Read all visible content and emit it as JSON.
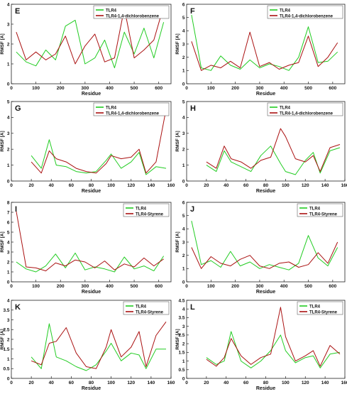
{
  "figure_title": "",
  "legend_colors": {
    "TLR4": "#22cc22",
    "complex": "#aa1111"
  },
  "chart_data": [
    {
      "panel": "E",
      "type": "line",
      "title": "",
      "xlabel": "Residue",
      "ylabel": "RMSF [A]",
      "xlim": [
        0,
        650
      ],
      "ylim": [
        0,
        4
      ],
      "xticks": [
        0,
        100,
        200,
        300,
        400,
        500,
        600
      ],
      "yticks": [
        0,
        1,
        2,
        3,
        4
      ],
      "legend": [
        "TLR4",
        "TLR4-1,4-dichlorobenzene"
      ],
      "legend_position": "top-right",
      "series": [
        {
          "name": "TLR4",
          "x": [
            20,
            60,
            100,
            140,
            180,
            220,
            260,
            300,
            340,
            380,
            420,
            460,
            500,
            540,
            580,
            620
          ],
          "values": [
            1.6,
            1.1,
            0.9,
            1.7,
            1.2,
            2.9,
            3.2,
            1.0,
            1.3,
            2.2,
            0.8,
            2.6,
            1.5,
            2.8,
            1.3,
            3.1
          ]
        },
        {
          "name": "TLR4-1,4-dichlorobenzene",
          "x": [
            20,
            60,
            100,
            140,
            180,
            220,
            260,
            300,
            340,
            380,
            420,
            460,
            500,
            540,
            580,
            620
          ],
          "values": [
            2.6,
            1.2,
            1.6,
            1.2,
            1.5,
            2.4,
            1.0,
            1.9,
            2.5,
            1.1,
            1.3,
            3.8,
            1.3,
            1.7,
            2.2,
            3.9
          ]
        }
      ]
    },
    {
      "panel": "F",
      "type": "line",
      "title": "",
      "xlabel": "Residue",
      "ylabel": "RMSF [A]",
      "xlim": [
        0,
        650
      ],
      "ylim": [
        0,
        6
      ],
      "xticks": [
        0,
        100,
        200,
        300,
        400,
        500,
        600
      ],
      "yticks": [
        0,
        1,
        2,
        3,
        4,
        5,
        6
      ],
      "legend": [
        "TLR4",
        "TLR4-1,4-dichlorobenzene"
      ],
      "legend_position": "top-right",
      "series": [
        {
          "name": "TLR4",
          "x": [
            20,
            60,
            100,
            140,
            180,
            220,
            260,
            300,
            340,
            380,
            420,
            460,
            500,
            540,
            580,
            620
          ],
          "values": [
            5.2,
            1.2,
            1.0,
            2.1,
            1.4,
            1.1,
            1.8,
            1.2,
            1.5,
            1.3,
            1.0,
            2.0,
            4.3,
            1.6,
            1.7,
            2.4
          ]
        },
        {
          "name": "TLR4-1,4-dichlorobenzene",
          "x": [
            20,
            60,
            100,
            140,
            180,
            220,
            260,
            300,
            340,
            380,
            420,
            460,
            500,
            540,
            580,
            620
          ],
          "values": [
            3.2,
            1.0,
            1.4,
            1.2,
            1.7,
            1.2,
            3.9,
            1.3,
            1.6,
            1.1,
            1.4,
            1.6,
            3.6,
            1.3,
            2.0,
            3.1
          ]
        }
      ]
    },
    {
      "panel": "G",
      "type": "line",
      "title": "",
      "xlabel": "Residue",
      "ylabel": "RMSF [A]",
      "xlim": [
        0,
        160
      ],
      "ylim": [
        0,
        5
      ],
      "xticks": [
        0,
        20,
        40,
        60,
        80,
        100,
        120,
        140,
        160
      ],
      "yticks": [
        0,
        1,
        2,
        3,
        4,
        5
      ],
      "legend": [
        "TLR4",
        "TLR4-1,4-dichlorobenzene"
      ],
      "legend_position": "top-right",
      "series": [
        {
          "name": "TLR4",
          "x": [
            20,
            30,
            38,
            45,
            55,
            65,
            75,
            85,
            95,
            100,
            110,
            120,
            128,
            135,
            145,
            155
          ],
          "values": [
            1.6,
            0.8,
            2.6,
            1.0,
            0.9,
            0.6,
            0.5,
            0.6,
            1.3,
            1.7,
            0.8,
            1.2,
            1.8,
            0.4,
            0.9,
            0.8
          ]
        },
        {
          "name": "TLR4-1,4-dichlorobenzene",
          "x": [
            20,
            30,
            38,
            45,
            55,
            65,
            75,
            85,
            95,
            100,
            110,
            120,
            128,
            135,
            145,
            155
          ],
          "values": [
            1.2,
            0.5,
            1.9,
            1.4,
            1.2,
            0.8,
            0.6,
            0.5,
            1.1,
            1.6,
            1.4,
            1.5,
            2.0,
            0.5,
            1.2,
            4.5
          ]
        }
      ]
    },
    {
      "panel": "H",
      "type": "line",
      "title": "",
      "xlabel": "Residue",
      "ylabel": "RMSF [A]",
      "xlim": [
        0,
        160
      ],
      "ylim": [
        0,
        5
      ],
      "xticks": [
        0,
        20,
        40,
        60,
        80,
        100,
        120,
        140,
        160
      ],
      "yticks": [
        0,
        1,
        2,
        3,
        4,
        5
      ],
      "legend": [
        "TLR4",
        "TLR4-1,4-dichlorobenzene"
      ],
      "legend_position": "top-right",
      "series": [
        {
          "name": "TLR4",
          "x": [
            20,
            30,
            38,
            45,
            55,
            65,
            75,
            85,
            95,
            100,
            110,
            120,
            128,
            135,
            145,
            155
          ],
          "values": [
            1.0,
            0.6,
            1.9,
            1.2,
            0.9,
            0.6,
            1.6,
            2.2,
            1.1,
            0.6,
            0.4,
            1.3,
            1.8,
            0.5,
            1.9,
            2.1
          ]
        },
        {
          "name": "TLR4-1,4-dichlorobenzene",
          "x": [
            20,
            30,
            38,
            45,
            55,
            65,
            75,
            85,
            95,
            100,
            110,
            120,
            128,
            135,
            145,
            155
          ],
          "values": [
            1.2,
            0.8,
            2.2,
            1.4,
            1.2,
            0.8,
            1.3,
            1.5,
            3.3,
            2.8,
            1.4,
            1.2,
            1.6,
            0.6,
            2.1,
            2.3
          ]
        }
      ]
    },
    {
      "panel": "I",
      "type": "line",
      "title": "",
      "xlabel": "Residue",
      "ylabel": "RMSF [A]",
      "xlim": [
        0,
        650
      ],
      "ylim": [
        0,
        8
      ],
      "xticks": [
        0,
        100,
        200,
        300,
        400,
        500,
        600
      ],
      "yticks": [
        0,
        1,
        2,
        3,
        4,
        5,
        6,
        7,
        8
      ],
      "legend": [
        "TLR4",
        "TLR4-Styrene"
      ],
      "legend_position": "top-right",
      "series": [
        {
          "name": "TLR4",
          "x": [
            20,
            60,
            100,
            140,
            180,
            220,
            260,
            300,
            340,
            380,
            420,
            460,
            500,
            540,
            580,
            620
          ],
          "values": [
            2.0,
            1.3,
            1.0,
            1.6,
            2.8,
            1.4,
            2.9,
            1.2,
            1.5,
            1.3,
            1.0,
            2.5,
            1.3,
            1.6,
            1.1,
            2.6
          ]
        },
        {
          "name": "TLR4-Styrene",
          "x": [
            20,
            60,
            100,
            140,
            180,
            220,
            260,
            300,
            340,
            380,
            420,
            460,
            500,
            540,
            580,
            620
          ],
          "values": [
            7.1,
            1.5,
            1.4,
            1.1,
            1.9,
            1.6,
            2.2,
            2.0,
            1.4,
            2.1,
            1.2,
            1.8,
            1.5,
            2.4,
            1.6,
            2.3
          ]
        }
      ]
    },
    {
      "panel": "J",
      "type": "line",
      "title": "",
      "xlabel": "Residue",
      "ylabel": "RMSF [A]",
      "xlim": [
        0,
        650
      ],
      "ylim": [
        0,
        6
      ],
      "xticks": [
        0,
        100,
        200,
        300,
        400,
        500,
        600
      ],
      "yticks": [
        0,
        1,
        2,
        3,
        4,
        5,
        6
      ],
      "legend": [
        "TLR4",
        "TLR4-Styrene"
      ],
      "legend_position": "top-right",
      "series": [
        {
          "name": "TLR4",
          "x": [
            20,
            60,
            100,
            140,
            180,
            220,
            260,
            300,
            340,
            380,
            420,
            460,
            500,
            540,
            580,
            620
          ],
          "values": [
            4.6,
            1.3,
            1.6,
            1.1,
            2.3,
            1.2,
            1.5,
            1.0,
            1.3,
            1.1,
            0.9,
            1.4,
            3.5,
            1.8,
            1.2,
            2.6
          ]
        },
        {
          "name": "TLR4-Styrene",
          "x": [
            20,
            60,
            100,
            140,
            180,
            220,
            260,
            300,
            340,
            380,
            420,
            460,
            500,
            540,
            580,
            620
          ],
          "values": [
            2.6,
            1.0,
            1.9,
            1.4,
            1.2,
            1.7,
            2.0,
            1.2,
            1.0,
            1.4,
            1.5,
            1.1,
            1.3,
            2.2,
            1.4,
            3.0
          ]
        }
      ]
    },
    {
      "panel": "K",
      "type": "line",
      "title": "",
      "xlabel": "Residue",
      "ylabel": "RMSF [A]",
      "xlim": [
        0,
        160
      ],
      "ylim": [
        0,
        4
      ],
      "xticks": [
        0,
        20,
        40,
        60,
        80,
        100,
        120,
        140,
        160
      ],
      "yticks": [
        0,
        0.5,
        1,
        1.5,
        2,
        2.5,
        3,
        3.5,
        4
      ],
      "legend": [
        "TLR4",
        "TLR4-Styrene"
      ],
      "legend_position": "top-right",
      "series": [
        {
          "name": "TLR4",
          "x": [
            20,
            30,
            38,
            45,
            55,
            65,
            75,
            85,
            95,
            100,
            110,
            120,
            128,
            135,
            145,
            155
          ],
          "values": [
            1.1,
            0.5,
            2.8,
            1.1,
            0.9,
            0.6,
            0.4,
            0.7,
            1.4,
            1.8,
            0.9,
            1.3,
            1.2,
            0.5,
            1.5,
            1.5
          ]
        },
        {
          "name": "TLR4-Styrene",
          "x": [
            20,
            30,
            38,
            45,
            55,
            65,
            75,
            85,
            95,
            100,
            110,
            120,
            128,
            135,
            145,
            155
          ],
          "values": [
            0.9,
            0.7,
            1.8,
            1.9,
            2.6,
            1.3,
            0.6,
            0.5,
            1.6,
            2.5,
            1.1,
            1.6,
            2.4,
            0.6,
            2.2,
            2.9
          ]
        }
      ]
    },
    {
      "panel": "L",
      "type": "line",
      "title": "",
      "xlabel": "Residue",
      "ylabel": "RMSF [A]",
      "xlim": [
        0,
        160
      ],
      "ylim": [
        0,
        4.5
      ],
      "xticks": [
        0,
        20,
        40,
        60,
        80,
        100,
        120,
        140,
        160
      ],
      "yticks": [
        0,
        0.5,
        1,
        1.5,
        2,
        2.5,
        3,
        3.5,
        4,
        4.5
      ],
      "legend": [
        "TLR4",
        "TLR4-Styrene"
      ],
      "legend_position": "top-right",
      "series": [
        {
          "name": "TLR4",
          "x": [
            20,
            30,
            38,
            45,
            55,
            65,
            75,
            85,
            95,
            100,
            110,
            120,
            128,
            135,
            145,
            155
          ],
          "values": [
            1.2,
            0.8,
            1.0,
            2.7,
            1.0,
            0.6,
            1.0,
            1.6,
            2.5,
            1.6,
            0.9,
            1.2,
            1.3,
            0.6,
            1.4,
            1.5
          ]
        },
        {
          "name": "TLR4-Styrene",
          "x": [
            20,
            30,
            38,
            45,
            55,
            65,
            75,
            85,
            95,
            100,
            110,
            120,
            128,
            135,
            145,
            155
          ],
          "values": [
            1.1,
            0.7,
            1.2,
            2.3,
            1.3,
            0.8,
            1.2,
            1.4,
            4.1,
            2.4,
            1.0,
            1.3,
            1.6,
            0.7,
            1.9,
            1.4
          ]
        }
      ]
    }
  ]
}
